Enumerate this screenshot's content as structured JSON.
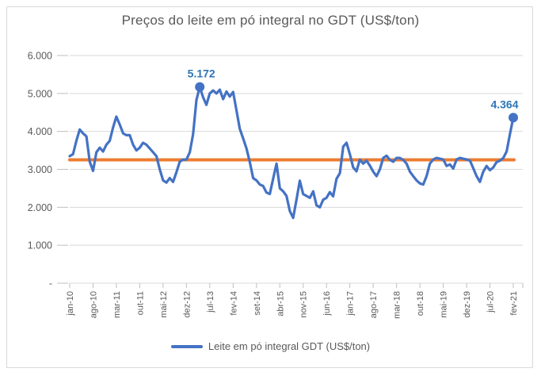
{
  "chart_data": {
    "type": "line",
    "title": "Preços do leite em pó integral no GDT (US$/ton)",
    "x_start": "jan-10",
    "x_end": "fev-21",
    "x_frequency": "monthly",
    "tick_every": 7,
    "x_tick_labels": [
      "jan-10",
      "ago-10",
      "mar-11",
      "out-11",
      "mai-12",
      "dez-12",
      "jul-13",
      "fev-14",
      "set-14",
      "abr-15",
      "nov-15",
      "jun-16",
      "jan-17",
      "ago-17",
      "mar-18",
      "out-18",
      "mai-19",
      "dez-19",
      "jul-20",
      "fev-21"
    ],
    "y_tick_labels": [
      "6.000",
      "5.000",
      "4.000",
      "3.000",
      "2.000",
      "1.000",
      "-"
    ],
    "ylim": [
      0,
      6000
    ],
    "y_gridline_step": 1000,
    "grid": "horizontal",
    "legend_position": "bottom",
    "series": [
      {
        "name": "Leite em pó integral GDT (US$/ton)",
        "color": "#4472C4",
        "values": [
          3350,
          3400,
          3750,
          4050,
          3950,
          3870,
          3200,
          2960,
          3450,
          3570,
          3470,
          3650,
          3750,
          4100,
          4390,
          4180,
          3950,
          3900,
          3900,
          3650,
          3500,
          3570,
          3700,
          3650,
          3550,
          3450,
          3350,
          3000,
          2710,
          2650,
          2770,
          2670,
          2920,
          3200,
          3260,
          3260,
          3450,
          3930,
          4830,
          5172,
          4900,
          4700,
          5000,
          5080,
          5000,
          5100,
          4850,
          5050,
          4920,
          5040,
          4560,
          4070,
          3820,
          3550,
          3190,
          2770,
          2710,
          2600,
          2560,
          2390,
          2350,
          2750,
          3150,
          2500,
          2420,
          2300,
          1900,
          1720,
          2200,
          2700,
          2350,
          2300,
          2250,
          2420,
          2050,
          2000,
          2200,
          2250,
          2400,
          2290,
          2750,
          2900,
          3600,
          3700,
          3400,
          3050,
          2950,
          3260,
          3150,
          3230,
          3100,
          2940,
          2820,
          3000,
          3300,
          3360,
          3250,
          3200,
          3300,
          3300,
          3250,
          3150,
          2940,
          2820,
          2710,
          2630,
          2600,
          2820,
          3150,
          3260,
          3300,
          3280,
          3260,
          3090,
          3130,
          3020,
          3260,
          3300,
          3280,
          3260,
          3230,
          3030,
          2820,
          2670,
          2940,
          3090,
          2980,
          3050,
          3190,
          3230,
          3300,
          3470,
          3930,
          4364
        ]
      },
      {
        "name": "reference-line",
        "type": "constant",
        "color": "#ED7D31",
        "value": 3250
      }
    ],
    "annotations": [
      {
        "label": "5.172",
        "index": 39,
        "value": 5172
      },
      {
        "label": "4.364",
        "index": 133,
        "value": 4364
      }
    ],
    "colors": {
      "line": "#4472C4",
      "marker": "#4472C4",
      "reference": "#ED7D31",
      "annotation_text": "#2E75B6",
      "grid": "#D9D9D9",
      "tick": "#BFBFBF",
      "axis_text": "#595959",
      "title_text": "#595959",
      "border": "#D9D9D9"
    }
  }
}
